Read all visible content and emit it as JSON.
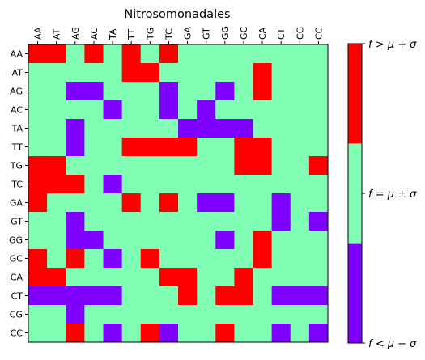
{
  "chart_data": {
    "type": "heatmap",
    "title": "Nitrosomonadales",
    "x_labels": [
      "AA",
      "AT",
      "AG",
      "AC",
      "TA",
      "TT",
      "TG",
      "TC",
      "GA",
      "GT",
      "GG",
      "GC",
      "CA",
      "CT",
      "CG",
      "CC"
    ],
    "y_labels": [
      "AA",
      "AT",
      "AG",
      "AC",
      "TA",
      "TT",
      "TG",
      "TC",
      "GA",
      "GT",
      "GG",
      "GC",
      "CA",
      "CT",
      "CG",
      "CC"
    ],
    "category_meaning": {
      "-1": "low",
      "0": "mid",
      "1": "high"
    },
    "matrix": [
      [
        1,
        1,
        0,
        1,
        0,
        1,
        0,
        1,
        0,
        0,
        0,
        0,
        0,
        0,
        0,
        0
      ],
      [
        0,
        0,
        0,
        0,
        0,
        1,
        1,
        0,
        0,
        0,
        0,
        0,
        1,
        0,
        0,
        0
      ],
      [
        0,
        0,
        -1,
        -1,
        0,
        0,
        0,
        -1,
        0,
        0,
        -1,
        0,
        1,
        0,
        0,
        0
      ],
      [
        0,
        0,
        0,
        0,
        -1,
        0,
        0,
        -1,
        0,
        -1,
        0,
        0,
        0,
        0,
        0,
        0
      ],
      [
        0,
        0,
        -1,
        0,
        0,
        0,
        0,
        0,
        -1,
        -1,
        -1,
        -1,
        0,
        0,
        0,
        0
      ],
      [
        0,
        0,
        -1,
        0,
        0,
        1,
        1,
        1,
        1,
        0,
        0,
        1,
        1,
        0,
        0,
        0
      ],
      [
        1,
        1,
        0,
        0,
        0,
        0,
        0,
        0,
        0,
        0,
        0,
        1,
        1,
        0,
        0,
        1
      ],
      [
        1,
        1,
        1,
        0,
        -1,
        0,
        0,
        0,
        0,
        0,
        0,
        0,
        0,
        0,
        0,
        0
      ],
      [
        1,
        0,
        0,
        0,
        0,
        1,
        0,
        1,
        0,
        -1,
        -1,
        0,
        0,
        -1,
        0,
        0
      ],
      [
        0,
        0,
        -1,
        0,
        0,
        0,
        0,
        0,
        0,
        0,
        0,
        0,
        0,
        -1,
        0,
        -1
      ],
      [
        0,
        0,
        -1,
        -1,
        0,
        0,
        0,
        0,
        0,
        0,
        -1,
        0,
        1,
        0,
        0,
        0
      ],
      [
        1,
        0,
        1,
        0,
        -1,
        0,
        1,
        0,
        0,
        0,
        0,
        0,
        1,
        0,
        0,
        0
      ],
      [
        1,
        1,
        0,
        0,
        0,
        0,
        0,
        1,
        1,
        0,
        0,
        1,
        0,
        0,
        0,
        0
      ],
      [
        -1,
        -1,
        -1,
        -1,
        -1,
        0,
        0,
        0,
        1,
        0,
        1,
        1,
        0,
        -1,
        -1,
        -1
      ],
      [
        0,
        0,
        -1,
        0,
        0,
        0,
        0,
        0,
        0,
        0,
        0,
        0,
        0,
        0,
        0,
        0
      ],
      [
        0,
        0,
        1,
        0,
        -1,
        0,
        1,
        -1,
        0,
        0,
        1,
        0,
        0,
        -1,
        0,
        -1
      ]
    ],
    "colors": {
      "low": "#8000ff",
      "mid": "#80ffb4",
      "high": "#ff0000"
    },
    "colorbar": {
      "labels": [
        "f > μ + σ",
        "f = μ ± σ",
        "f < μ − σ"
      ]
    },
    "grid": false
  }
}
